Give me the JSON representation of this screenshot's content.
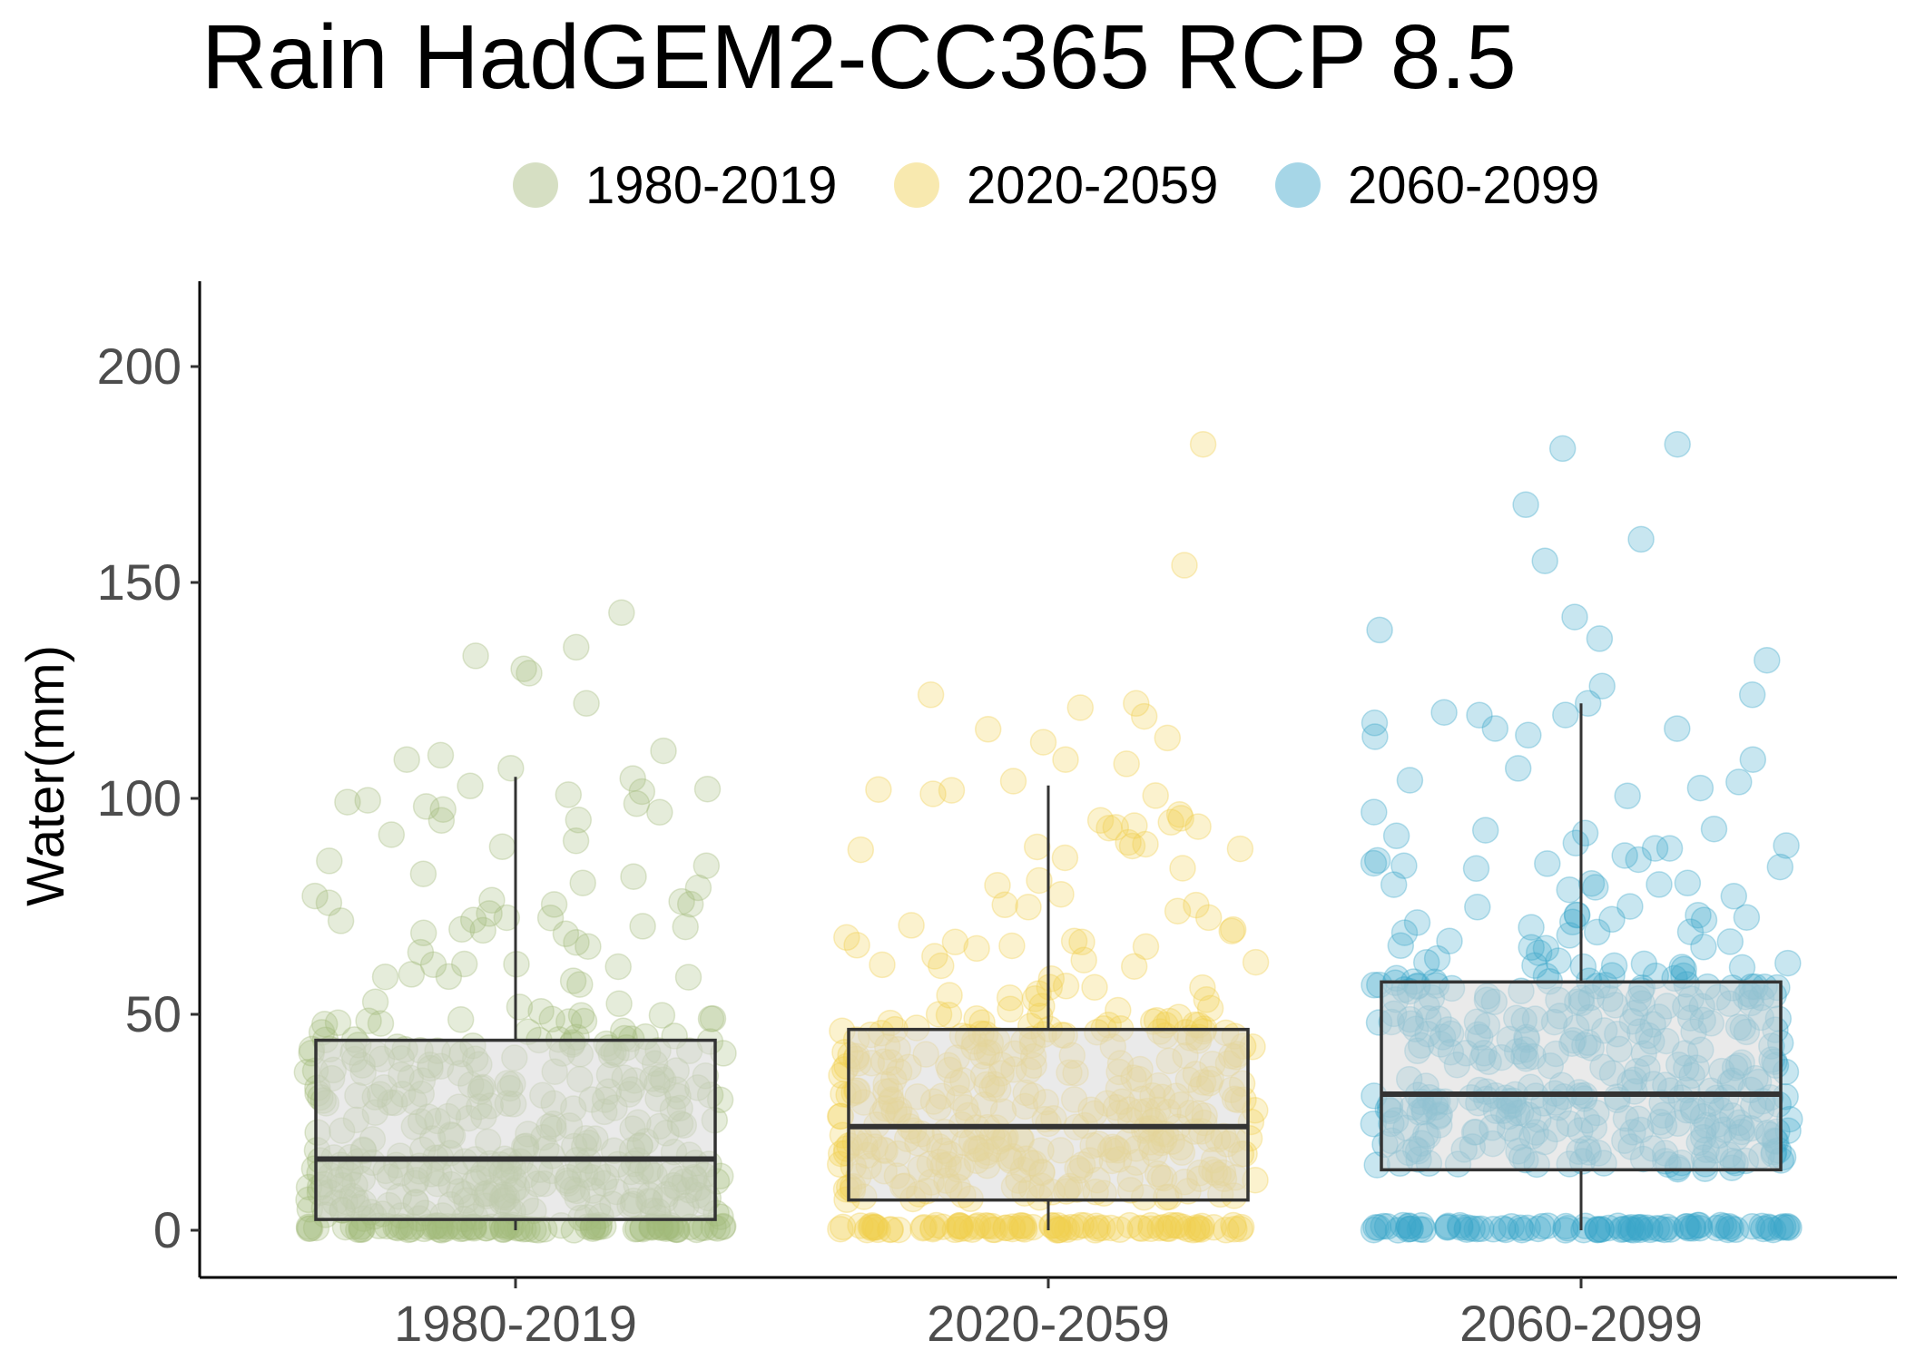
{
  "chart_data": {
    "type": "box+jitter",
    "title": "Rain HadGEM2-CC365 RCP 8.5",
    "ylabel": "Water(mm)",
    "xlabel": "",
    "ylim": [
      -10,
      220
    ],
    "yticks": [
      0,
      50,
      100,
      150,
      200
    ],
    "grid": false,
    "legend_position": "top",
    "categories": [
      "1980-2019",
      "2020-2059",
      "2060-2099"
    ],
    "colors": [
      "#a3b97a",
      "#f0cf4e",
      "#3aa5c9"
    ],
    "box_fill": "#d9d9d9",
    "box_stroke": "#333333",
    "series": [
      {
        "name": "1980-2019",
        "box": {
          "whisker_low": 0,
          "q1": 2.5,
          "median": 16.5,
          "q3": 44,
          "whisker_high": 105
        },
        "outliers": [
          107,
          109,
          110,
          111,
          122,
          129,
          130,
          133,
          135,
          143
        ]
      },
      {
        "name": "2020-2059",
        "box": {
          "whisker_low": 0,
          "q1": 7,
          "median": 24,
          "q3": 46.5,
          "whisker_high": 103
        },
        "outliers": [
          104,
          108,
          109,
          113,
          114,
          116,
          119,
          121,
          122,
          124,
          154,
          182
        ]
      },
      {
        "name": "2060-2099",
        "box": {
          "whisker_low": 0,
          "q1": 14,
          "median": 31.5,
          "q3": 57.5,
          "whisker_high": 122
        },
        "outliers": [
          122,
          124,
          126,
          132,
          137,
          139,
          142,
          155,
          160,
          168,
          181,
          182
        ]
      }
    ]
  }
}
